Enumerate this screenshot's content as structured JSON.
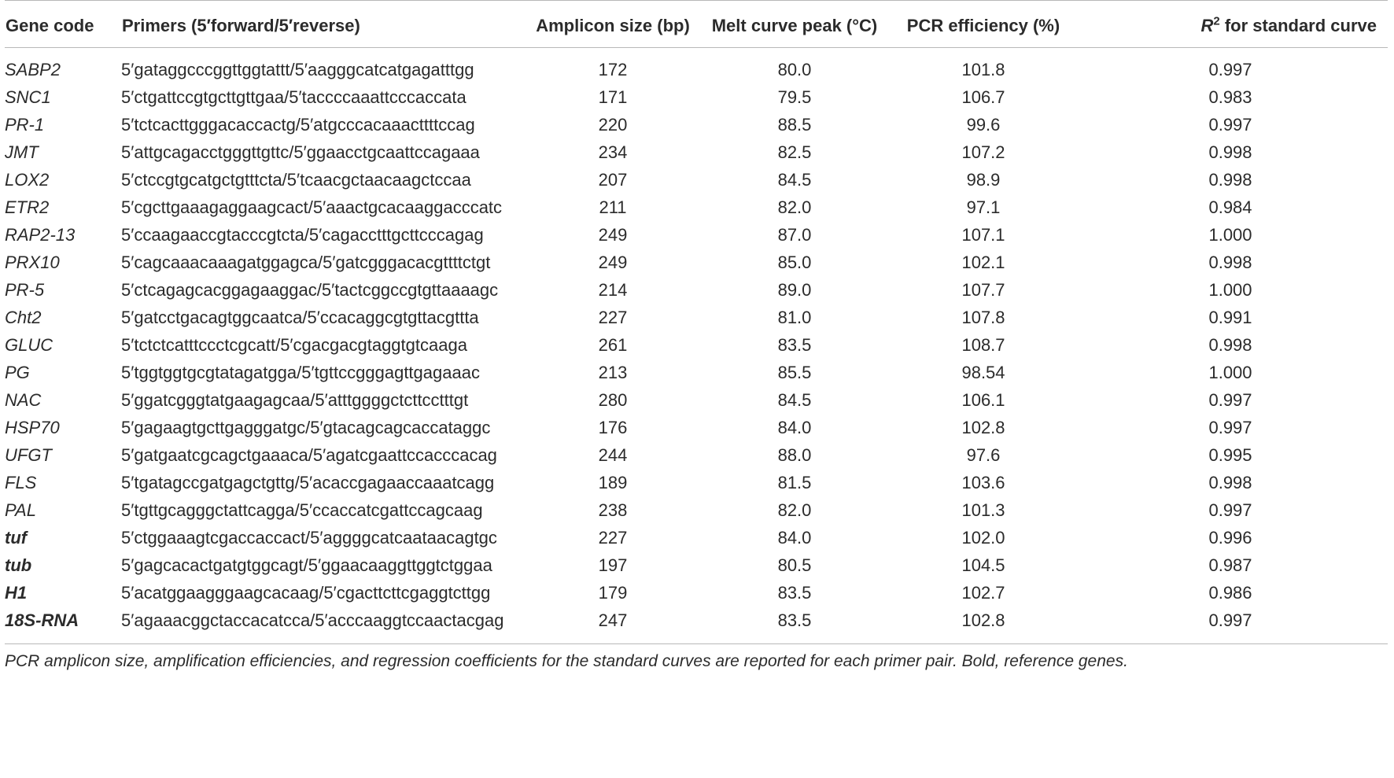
{
  "table": {
    "headers": {
      "gene_code": "Gene code",
      "primers": "Primers (5′forward/5′reverse)",
      "amplicon": "Amplicon size (bp)",
      "melt": "Melt curve peak (°C)",
      "efficiency": "PCR efficiency (%)",
      "r2_symbol": "R",
      "r2_sup": "2",
      "r2_rest": " for standard curve"
    },
    "rows": [
      {
        "gene": "SABP2",
        "primers": "5′gataggcccggttggtattt/5′aagggcatcatgagatttgg",
        "amplicon": "172",
        "melt": "80.0",
        "efficiency": "101.8",
        "r2": "0.997",
        "reference": false
      },
      {
        "gene": "SNC1",
        "primers": "5′ctgattccgtgcttgttgaa/5′taccccaaattcccaccata",
        "amplicon": "171",
        "melt": "79.5",
        "efficiency": "106.7",
        "r2": "0.983",
        "reference": false
      },
      {
        "gene": "PR-1",
        "primers": "5′tctcacttgggacaccactg/5′atgcccacaaacttttccag",
        "amplicon": "220",
        "melt": "88.5",
        "efficiency": "99.6",
        "r2": "0.997",
        "reference": false
      },
      {
        "gene": "JMT",
        "primers": "5′attgcagacctgggttgttc/5′ggaacctgcaattccagaaa",
        "amplicon": "234",
        "melt": "82.5",
        "efficiency": "107.2",
        "r2": "0.998",
        "reference": false
      },
      {
        "gene": "LOX2",
        "primers": "5′ctccgtgcatgctgtttcta/5′tcaacgctaacaagctccaa",
        "amplicon": "207",
        "melt": "84.5",
        "efficiency": "98.9",
        "r2": "0.998",
        "reference": false
      },
      {
        "gene": "ETR2",
        "primers": "5′cgcttgaaagaggaagcact/5′aaactgcacaaggacccatc",
        "amplicon": "211",
        "melt": "82.0",
        "efficiency": "97.1",
        "r2": "0.984",
        "reference": false
      },
      {
        "gene": "RAP2-13",
        "primers": "5′ccaagaaccgtacccgtcta/5′cagacctttgcttcccagag",
        "amplicon": "249",
        "melt": "87.0",
        "efficiency": "107.1",
        "r2": "1.000",
        "reference": false
      },
      {
        "gene": "PRX10",
        "primers": "5′cagcaaacaaagatggagca/5′gatcgggacacgttttctgt",
        "amplicon": "249",
        "melt": "85.0",
        "efficiency": "102.1",
        "r2": "0.998",
        "reference": false
      },
      {
        "gene": "PR-5",
        "primers": "5′ctcagagcacggagaaggac/5′tactcggccgtgttaaaagc",
        "amplicon": "214",
        "melt": "89.0",
        "efficiency": "107.7",
        "r2": "1.000",
        "reference": false
      },
      {
        "gene": "Cht2",
        "primers": "5′gatcctgacagtggcaatca/5′ccacaggcgtgttacgttta",
        "amplicon": "227",
        "melt": "81.0",
        "efficiency": "107.8",
        "r2": "0.991",
        "reference": false
      },
      {
        "gene": "GLUC",
        "primers": "5′tctctcatttccctcgcatt/5′cgacgacgtaggtgtcaaga",
        "amplicon": "261",
        "melt": "83.5",
        "efficiency": "108.7",
        "r2": "0.998",
        "reference": false
      },
      {
        "gene": "PG",
        "primers": "5′tggtggtgcgtatagatgga/5′tgttccgggagttgagaaac",
        "amplicon": "213",
        "melt": "85.5",
        "efficiency": "98.54",
        "r2": "1.000",
        "reference": false
      },
      {
        "gene": "NAC",
        "primers": "5′ggatcgggtatgaagagcaa/5′atttggggctcttcctttgt",
        "amplicon": "280",
        "melt": "84.5",
        "efficiency": "106.1",
        "r2": "0.997",
        "reference": false
      },
      {
        "gene": "HSP70",
        "primers": "5′gagaagtgcttgagggatgc/5′gtacagcagcaccataggc",
        "amplicon": "176",
        "melt": "84.0",
        "efficiency": "102.8",
        "r2": "0.997",
        "reference": false
      },
      {
        "gene": "UFGT",
        "primers": "5′gatgaatcgcagctgaaaca/5′agatcgaattccacccacag",
        "amplicon": "244",
        "melt": "88.0",
        "efficiency": "97.6",
        "r2": "0.995",
        "reference": false
      },
      {
        "gene": "FLS",
        "primers": "5′tgatagccgatgagctgttg/5′acaccgagaaccaaatcagg",
        "amplicon": "189",
        "melt": "81.5",
        "efficiency": "103.6",
        "r2": "0.998",
        "reference": false
      },
      {
        "gene": "PAL",
        "primers": "5′tgttgcagggctattcagga/5′ccaccatcgattccagcaag",
        "amplicon": "238",
        "melt": "82.0",
        "efficiency": "101.3",
        "r2": "0.997",
        "reference": false
      },
      {
        "gene": "tuf",
        "primers": "5′ctggaaagtcgaccaccact/5′aggggcatcaataacagtgc",
        "amplicon": "227",
        "melt": "84.0",
        "efficiency": "102.0",
        "r2": "0.996",
        "reference": true
      },
      {
        "gene": "tub",
        "primers": "5′gagcacactgatgtggcagt/5′ggaacaaggttggtctggaa",
        "amplicon": "197",
        "melt": "80.5",
        "efficiency": "104.5",
        "r2": "0.987",
        "reference": true
      },
      {
        "gene": "H1",
        "primers": "5′acatggaagggaagcacaag/5′cgacttcttcgaggtcttgg",
        "amplicon": "179",
        "melt": "83.5",
        "efficiency": "102.7",
        "r2": "0.986",
        "reference": true
      },
      {
        "gene": "18S-RNA",
        "primers": "5′agaaacggctaccacatcca/5′acccaaggtccaactacgag",
        "amplicon": "247",
        "melt": "83.5",
        "efficiency": "102.8",
        "r2": "0.997",
        "reference": true
      }
    ]
  },
  "footnote": "PCR amplicon size, amplification efficiencies, and regression coefficients for the standard curves are reported for each primer pair. Bold, reference genes."
}
